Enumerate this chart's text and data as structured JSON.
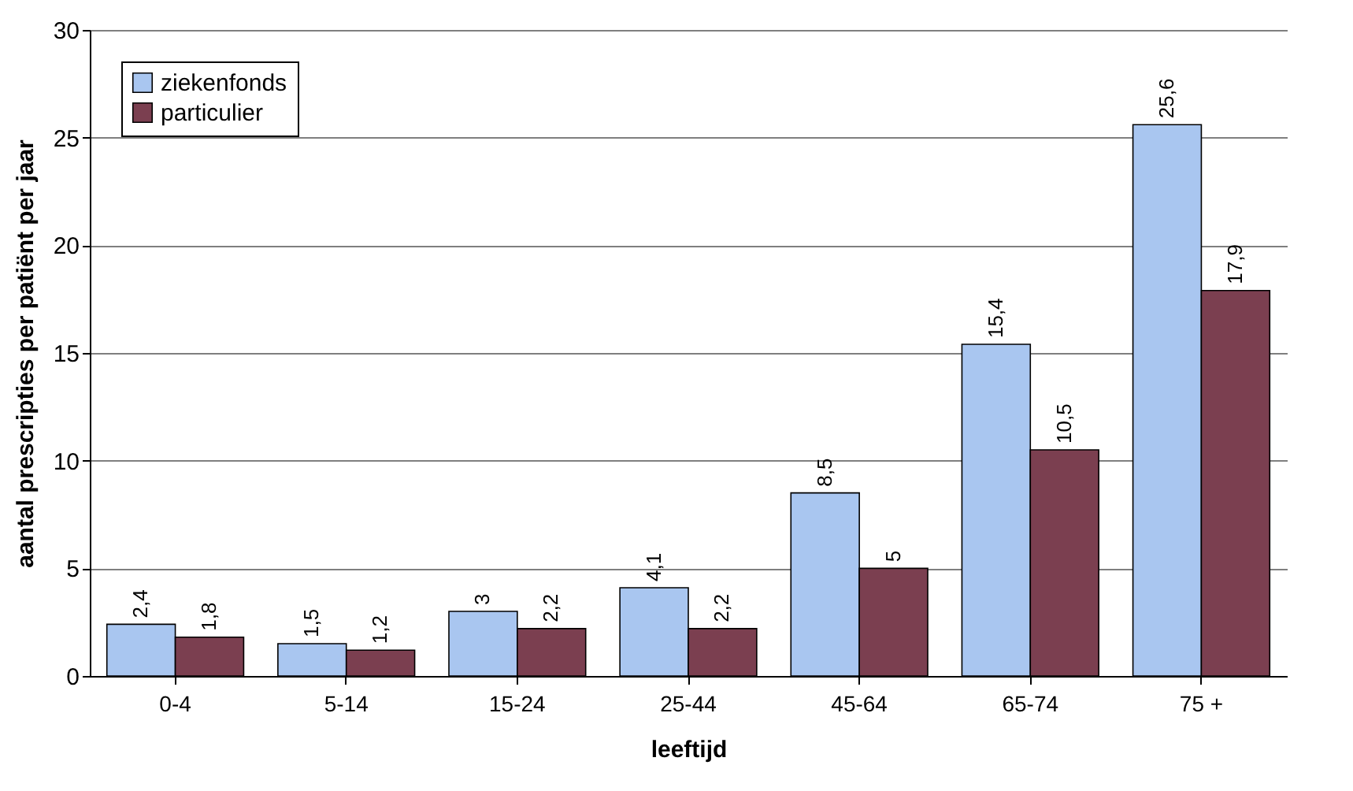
{
  "chart_data": {
    "type": "bar",
    "xlabel": "leeftijd",
    "ylabel": "aantal prescripties per patiënt per jaar",
    "categories": [
      "0-4",
      "5-14",
      "15-24",
      "25-44",
      "45-64",
      "65-74",
      "75 +"
    ],
    "series": [
      {
        "name": "ziekenfonds",
        "color": "#a9c6f0",
        "values": [
          2.4,
          1.5,
          3,
          4.1,
          8.5,
          15.4,
          25.6
        ],
        "value_labels": [
          "2,4",
          "1,5",
          "3",
          "4,1",
          "8,5",
          "15,4",
          "25,6"
        ]
      },
      {
        "name": "particulier",
        "color": "#7b3f50",
        "values": [
          1.8,
          1.2,
          2.2,
          2.2,
          5,
          10.5,
          17.9
        ],
        "value_labels": [
          "1,8",
          "1,2",
          "2,2",
          "2,2",
          "5",
          "10,5",
          "17,9"
        ]
      }
    ],
    "ylim": [
      0,
      30
    ],
    "yticks": [
      0,
      5,
      10,
      15,
      20,
      25,
      30
    ],
    "grid": "y",
    "legend": "top left"
  }
}
